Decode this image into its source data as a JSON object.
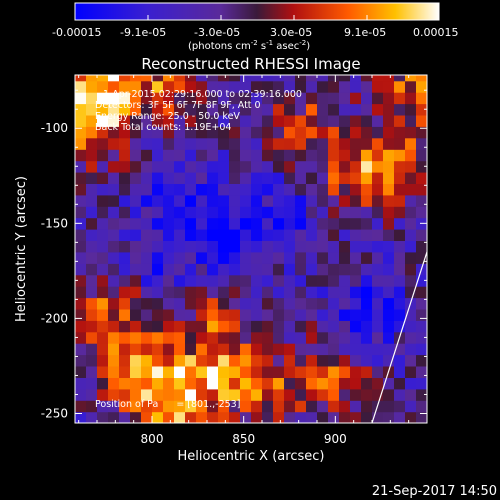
{
  "colorbar": {
    "ticks": [
      "-0.00015",
      "-9.1e-05",
      "-3.0e-05",
      "3.0e-05",
      "9.1e-05",
      "0.00015"
    ],
    "units_main": "(photons cm",
    "units_exp1": "-2",
    "units_mid": " s",
    "units_exp2": "-1",
    "units_tail": " asec",
    "units_exp3": "-2",
    "units_close": ")"
  },
  "image": {
    "title": "Reconstructed RHESSI Image",
    "info_lines": [
      "1-Apr-2015 02:29:16.000 to 02:39:16.000",
      "Detectors: 3F 5F 6F 7F 8F 9F, Att 0",
      "Energy Range: 25.0 - 50.0 keV",
      "Back      Total counts: 1.19E+04"
    ],
    "position_label": "Position of Pa",
    "position_value": "= [801.,-253]",
    "footer_date": "21-Sep-2017 14:50"
  },
  "chart_data": {
    "type": "heatmap",
    "title": "Reconstructed RHESSI Image",
    "xlabel": "Heliocentric X (arcsec)",
    "ylabel": "Heliocentric Y (arcsec)",
    "xlim": [
      758,
      950
    ],
    "ylim": [
      -255,
      -72
    ],
    "xticks": [
      800,
      850,
      900
    ],
    "yticks": [
      -100,
      -150,
      -200,
      -250
    ],
    "colorbar_range": [
      -0.00015,
      0.00015
    ],
    "colormap": "blue-purple-red-yellow-white",
    "limb_line": [
      [
        920,
        -255
      ],
      [
        950,
        -165
      ]
    ],
    "regions": [
      {
        "x": 765,
        "y": -100,
        "v": 0.00013
      },
      {
        "x": 770,
        "y": -78,
        "v": 0.00012
      },
      {
        "x": 800,
        "y": -80,
        "v": 9e-05
      },
      {
        "x": 775,
        "y": -200,
        "v": 0.0001
      },
      {
        "x": 790,
        "y": -230,
        "v": 0.00012
      },
      {
        "x": 810,
        "y": -245,
        "v": 0.00014
      },
      {
        "x": 835,
        "y": -230,
        "v": 0.0001
      },
      {
        "x": 860,
        "y": -240,
        "v": 8e-05
      },
      {
        "x": 895,
        "y": -235,
        "v": 0.0001
      },
      {
        "x": 930,
        "y": -120,
        "v": 0.00011
      },
      {
        "x": 905,
        "y": -125,
        "v": 9e-05
      },
      {
        "x": 940,
        "y": -80,
        "v": 0.0001
      },
      {
        "x": 880,
        "y": -100,
        "v": 7e-05
      },
      {
        "x": 830,
        "y": -205,
        "v": 7e-05
      },
      {
        "x": 810,
        "y": -140,
        "v": -8e-05
      },
      {
        "x": 840,
        "y": -160,
        "v": -9e-05
      },
      {
        "x": 870,
        "y": -150,
        "v": -7e-05
      },
      {
        "x": 800,
        "y": -175,
        "v": -6e-05
      },
      {
        "x": 915,
        "y": -200,
        "v": -8e-05
      }
    ]
  }
}
